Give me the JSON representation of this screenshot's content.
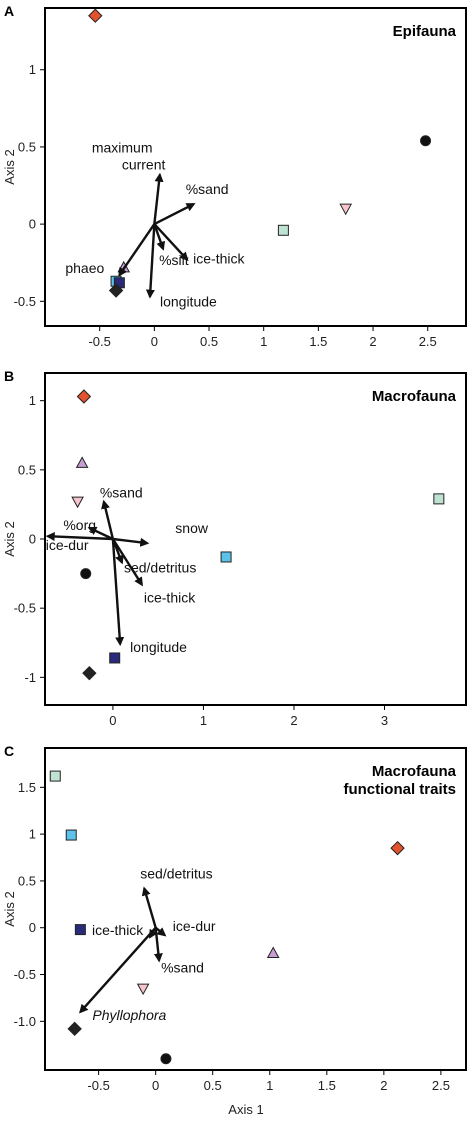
{
  "figure": {
    "shared_xlabel": "Axis 1"
  },
  "chart_data": [
    {
      "type": "scatter",
      "panel_letter": "A",
      "title": "Epifauna",
      "xlabel": "",
      "ylabel": "Axis 2",
      "xlim": [
        -1.0,
        2.85
      ],
      "ylim": [
        -0.66,
        1.4
      ],
      "xticks": [
        -0.5,
        0,
        0.5,
        1,
        1.5,
        2,
        2.5
      ],
      "xtick_labels": [
        "-0.5",
        "0",
        "0.5",
        "1",
        "1.5",
        "2",
        "2.5"
      ],
      "yticks": [
        -0.5,
        0,
        0.5,
        1
      ],
      "ytick_labels": [
        "-0.5",
        "0",
        "0.5",
        "1"
      ],
      "points": [
        {
          "marker": "diamond",
          "color": "#e3522e",
          "x": -0.54,
          "y": 1.35
        },
        {
          "marker": "circle",
          "color": "#111111",
          "x": 2.48,
          "y": 0.54
        },
        {
          "marker": "triangle-down",
          "color": "#f6c6cc",
          "x": 1.75,
          "y": 0.1
        },
        {
          "marker": "square",
          "color": "#bfe3d2",
          "x": 1.18,
          "y": -0.04
        },
        {
          "marker": "triangle-up",
          "color": "#c69ed1",
          "x": -0.28,
          "y": -0.28
        },
        {
          "marker": "square",
          "color": "#5bc2ea",
          "x": -0.35,
          "y": -0.37
        },
        {
          "marker": "square",
          "color": "#2a2a7a",
          "x": -0.32,
          "y": -0.38
        },
        {
          "marker": "diamond",
          "color": "#222222",
          "x": -0.35,
          "y": -0.43
        }
      ],
      "vectors": [
        {
          "label": "maximum current",
          "x": 0.05,
          "y": 0.32
        },
        {
          "label": "%sand",
          "x": 0.36,
          "y": 0.13
        },
        {
          "label": "%silt",
          "x": 0.08,
          "y": -0.16
        },
        {
          "label": "ice-thick",
          "x": 0.3,
          "y": -0.23
        },
        {
          "label": "phaeo",
          "x": -0.32,
          "y": -0.33
        },
        {
          "label": "longitude",
          "x": -0.04,
          "y": -0.47
        }
      ]
    },
    {
      "type": "scatter",
      "panel_letter": "B",
      "title": "Macrofauna",
      "xlabel": "",
      "ylabel": "Axis 2",
      "xlim": [
        -0.75,
        3.9
      ],
      "ylim": [
        -1.2,
        1.2
      ],
      "xticks": [
        0,
        1,
        2,
        3
      ],
      "xtick_labels": [
        "0",
        "1",
        "2",
        "3"
      ],
      "yticks": [
        -1,
        -0.5,
        0,
        0.5,
        1
      ],
      "ytick_labels": [
        "-1",
        "-0.5",
        "0",
        "0.5",
        "1"
      ],
      "points": [
        {
          "marker": "diamond",
          "color": "#e3522e",
          "x": -0.32,
          "y": 1.03
        },
        {
          "marker": "triangle-up",
          "color": "#c69ed1",
          "x": -0.34,
          "y": 0.55
        },
        {
          "marker": "triangle-down",
          "color": "#f6c6cc",
          "x": -0.39,
          "y": 0.27
        },
        {
          "marker": "square",
          "color": "#bfe3d2",
          "x": 3.6,
          "y": 0.29
        },
        {
          "marker": "square",
          "color": "#5bc2ea",
          "x": 1.25,
          "y": -0.13
        },
        {
          "marker": "circle",
          "color": "#111111",
          "x": -0.3,
          "y": -0.25
        },
        {
          "marker": "square",
          "color": "#2a2a7a",
          "x": 0.02,
          "y": -0.86
        },
        {
          "marker": "diamond",
          "color": "#222222",
          "x": -0.26,
          "y": -0.97
        }
      ],
      "vectors": [
        {
          "label": "%sand",
          "x": -0.1,
          "y": 0.27
        },
        {
          "label": "%org",
          "x": -0.26,
          "y": 0.08
        },
        {
          "label": "ice-dur",
          "x": -0.72,
          "y": 0.02
        },
        {
          "label": "snow",
          "x": 0.38,
          "y": -0.03
        },
        {
          "label": "sed/detritus",
          "x": 0.1,
          "y": -0.17
        },
        {
          "label": "ice-thick",
          "x": 0.32,
          "y": -0.33
        },
        {
          "label": "longitude",
          "x": 0.08,
          "y": -0.76
        }
      ]
    },
    {
      "type": "scatter",
      "panel_letter": "C",
      "title": "Macrofauna\nfunctional traits",
      "xlabel": "Axis 1",
      "ylabel": "Axis 2",
      "xlim": [
        -0.97,
        2.72
      ],
      "ylim": [
        -1.52,
        1.92
      ],
      "xticks": [
        -0.5,
        0,
        0.5,
        1,
        1.5,
        2,
        2.5
      ],
      "xtick_labels": [
        "-0.5",
        "0",
        "0.5",
        "1",
        "1.5",
        "2",
        "2.5"
      ],
      "yticks": [
        -1.0,
        -0.5,
        0,
        0.5,
        1,
        1.5
      ],
      "ytick_labels": [
        "-1.0",
        "-0.5",
        "0",
        "0.5",
        "1",
        "1.5"
      ],
      "points": [
        {
          "marker": "square",
          "color": "#bfe3d2",
          "x": -0.88,
          "y": 1.62
        },
        {
          "marker": "square",
          "color": "#5bc2ea",
          "x": -0.74,
          "y": 0.99
        },
        {
          "marker": "diamond",
          "color": "#e3522e",
          "x": 2.12,
          "y": 0.85
        },
        {
          "marker": "square",
          "color": "#2a2a7a",
          "x": -0.66,
          "y": -0.02
        },
        {
          "marker": "triangle-up",
          "color": "#c69ed1",
          "x": 1.03,
          "y": -0.27
        },
        {
          "marker": "triangle-down",
          "color": "#f6c6cc",
          "x": -0.11,
          "y": -0.65
        },
        {
          "marker": "diamond",
          "color": "#222222",
          "x": -0.71,
          "y": -1.08
        },
        {
          "marker": "circle",
          "color": "#111111",
          "x": 0.09,
          "y": -1.4
        }
      ],
      "vectors": [
        {
          "label": "sed/detritus",
          "x": -0.1,
          "y": 0.42
        },
        {
          "label": "ice-thick",
          "x": -0.05,
          "y": -0.1
        },
        {
          "label": "ice-dur",
          "x": 0.08,
          "y": -0.08
        },
        {
          "label": "%sand",
          "x": 0.03,
          "y": -0.35
        },
        {
          "label": "Phyllophora",
          "x": -0.66,
          "y": -0.9
        }
      ]
    }
  ]
}
